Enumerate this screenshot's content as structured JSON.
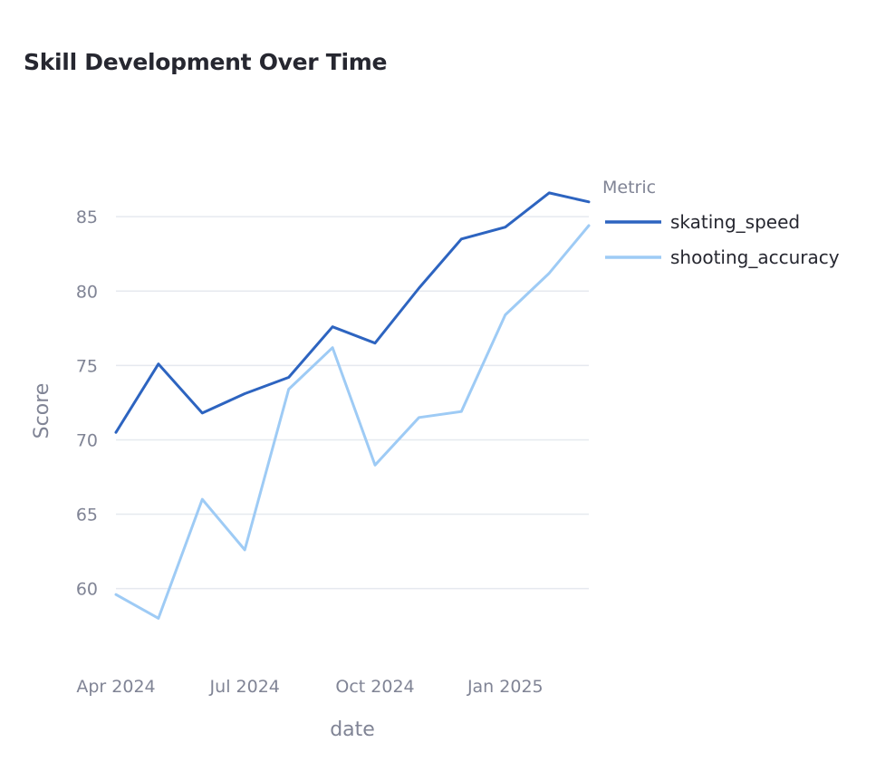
{
  "chart_data": {
    "type": "line",
    "title": "Skill Development Over Time",
    "xlabel": "date",
    "ylabel": "Score",
    "x": [
      "2024-04-01",
      "2024-05-01",
      "2024-06-01",
      "2024-07-01",
      "2024-08-01",
      "2024-09-01",
      "2024-10-01",
      "2024-11-01",
      "2024-12-01",
      "2025-01-01",
      "2025-02-01",
      "2025-03-01"
    ],
    "x_ticks": [
      {
        "date": "2024-04-01",
        "label": "Apr 2024"
      },
      {
        "date": "2024-07-01",
        "label": "Jul 2024"
      },
      {
        "date": "2024-10-01",
        "label": "Oct 2024"
      },
      {
        "date": "2025-01-01",
        "label": "Jan 2025"
      }
    ],
    "xlim": [
      "2024-04-01",
      "2025-03-01"
    ],
    "ylim": [
      56.2,
      88.3
    ],
    "y_ticks": [
      60,
      65,
      70,
      75,
      80,
      85
    ],
    "grid": "horizontal",
    "legend": {
      "title": "Metric",
      "placement": "right"
    },
    "series": [
      {
        "name": "skating_speed",
        "color": "#2d64c0",
        "values": [
          70.5,
          75.1,
          71.8,
          73.1,
          74.2,
          77.6,
          76.5,
          80.2,
          83.5,
          84.3,
          86.6,
          86.0
        ]
      },
      {
        "name": "shooting_accuracy",
        "color": "#9ecbf5",
        "values": [
          59.6,
          58.0,
          66.0,
          62.6,
          73.4,
          76.2,
          68.3,
          71.5,
          71.9,
          78.4,
          81.2,
          84.4
        ]
      }
    ]
  }
}
